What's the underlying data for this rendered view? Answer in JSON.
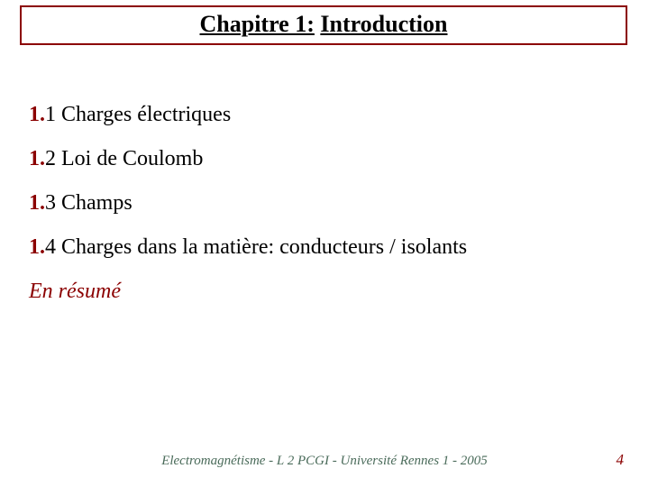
{
  "colors": {
    "title_border": "#8b0000",
    "title_text": "#000000",
    "toc_prefix": "#8b0000",
    "toc_text": "#000000",
    "summary_text": "#8b0000",
    "footer_text": "#4a6b5a",
    "page_num": "#8b0000",
    "background": "#ffffff"
  },
  "typography": {
    "title_fontsize": 26,
    "toc_fontsize": 24,
    "footer_fontsize": 15,
    "pagenum_fontsize": 17,
    "font_family": "Times New Roman"
  },
  "title": {
    "chapter_label": "Chapitre 1:",
    "chapter_title": "Introduction"
  },
  "toc": [
    {
      "prefix": "1.",
      "num": "1",
      "text": "Charges électriques"
    },
    {
      "prefix": "1.",
      "num": "2",
      "text": "Loi de Coulomb"
    },
    {
      "prefix": "1.",
      "num": "3",
      "text": "Champs"
    },
    {
      "prefix": "1.",
      "num": "4",
      "text": "Charges dans la matière: conducteurs / isolants"
    }
  ],
  "summary_label": "En résumé",
  "footer": "Electromagnétisme - L 2 PCGI - Université Rennes 1 - 2005",
  "page_number": "4"
}
